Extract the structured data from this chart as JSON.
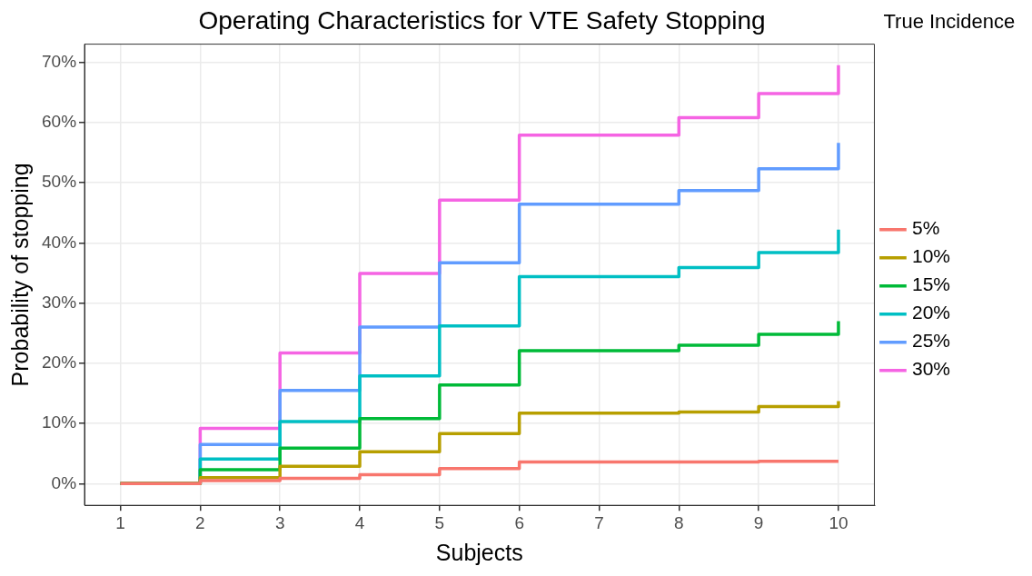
{
  "chart_data": {
    "type": "step",
    "title": "Operating Characteristics for VTE Safety Stopping",
    "xlabel": "Subjects",
    "ylabel": "Probability of stopping",
    "legend_title": "True Incidence",
    "legend": "right",
    "grid": true,
    "marker": "none",
    "line_style": "solid",
    "x": [
      1,
      2,
      3,
      4,
      5,
      6,
      8,
      9,
      10
    ],
    "xlim": [
      0.55,
      10.45
    ],
    "xticks": [
      1,
      2,
      3,
      4,
      5,
      6,
      7,
      8,
      9,
      10
    ],
    "ylim": [
      -3.6,
      73
    ],
    "yticks": [
      {
        "value": 0,
        "label": "0%"
      },
      {
        "value": 10,
        "label": "10%"
      },
      {
        "value": 20,
        "label": "20%"
      },
      {
        "value": 30,
        "label": "30%"
      },
      {
        "value": 40,
        "label": "40%"
      },
      {
        "value": 50,
        "label": "50%"
      },
      {
        "value": 60,
        "label": "60%"
      },
      {
        "value": 70,
        "label": "70%"
      }
    ],
    "series": [
      {
        "name": "5%",
        "color": "#f8766d",
        "values": [
          0,
          0.5,
          0.9,
          1.5,
          2.5,
          3.6,
          3.6,
          3.7,
          3.7
        ]
      },
      {
        "name": "10%",
        "color": "#b79f00",
        "values": [
          0,
          1.0,
          2.9,
          5.3,
          8.3,
          11.7,
          11.9,
          12.8,
          13.7
        ]
      },
      {
        "name": "15%",
        "color": "#00ba38",
        "values": [
          0,
          2.3,
          5.9,
          10.8,
          16.4,
          22.1,
          23.0,
          24.8,
          27.0
        ]
      },
      {
        "name": "20%",
        "color": "#00bfc4",
        "values": [
          0,
          4.1,
          10.3,
          17.9,
          26.2,
          34.4,
          35.9,
          38.4,
          42.2
        ]
      },
      {
        "name": "25%",
        "color": "#619cff",
        "values": [
          0,
          6.5,
          15.5,
          26.0,
          36.7,
          46.4,
          48.7,
          52.3,
          56.6
        ]
      },
      {
        "name": "30%",
        "color": "#f564e3",
        "values": [
          0,
          9.2,
          21.7,
          34.9,
          47.1,
          57.9,
          60.8,
          64.8,
          69.5
        ]
      }
    ]
  }
}
